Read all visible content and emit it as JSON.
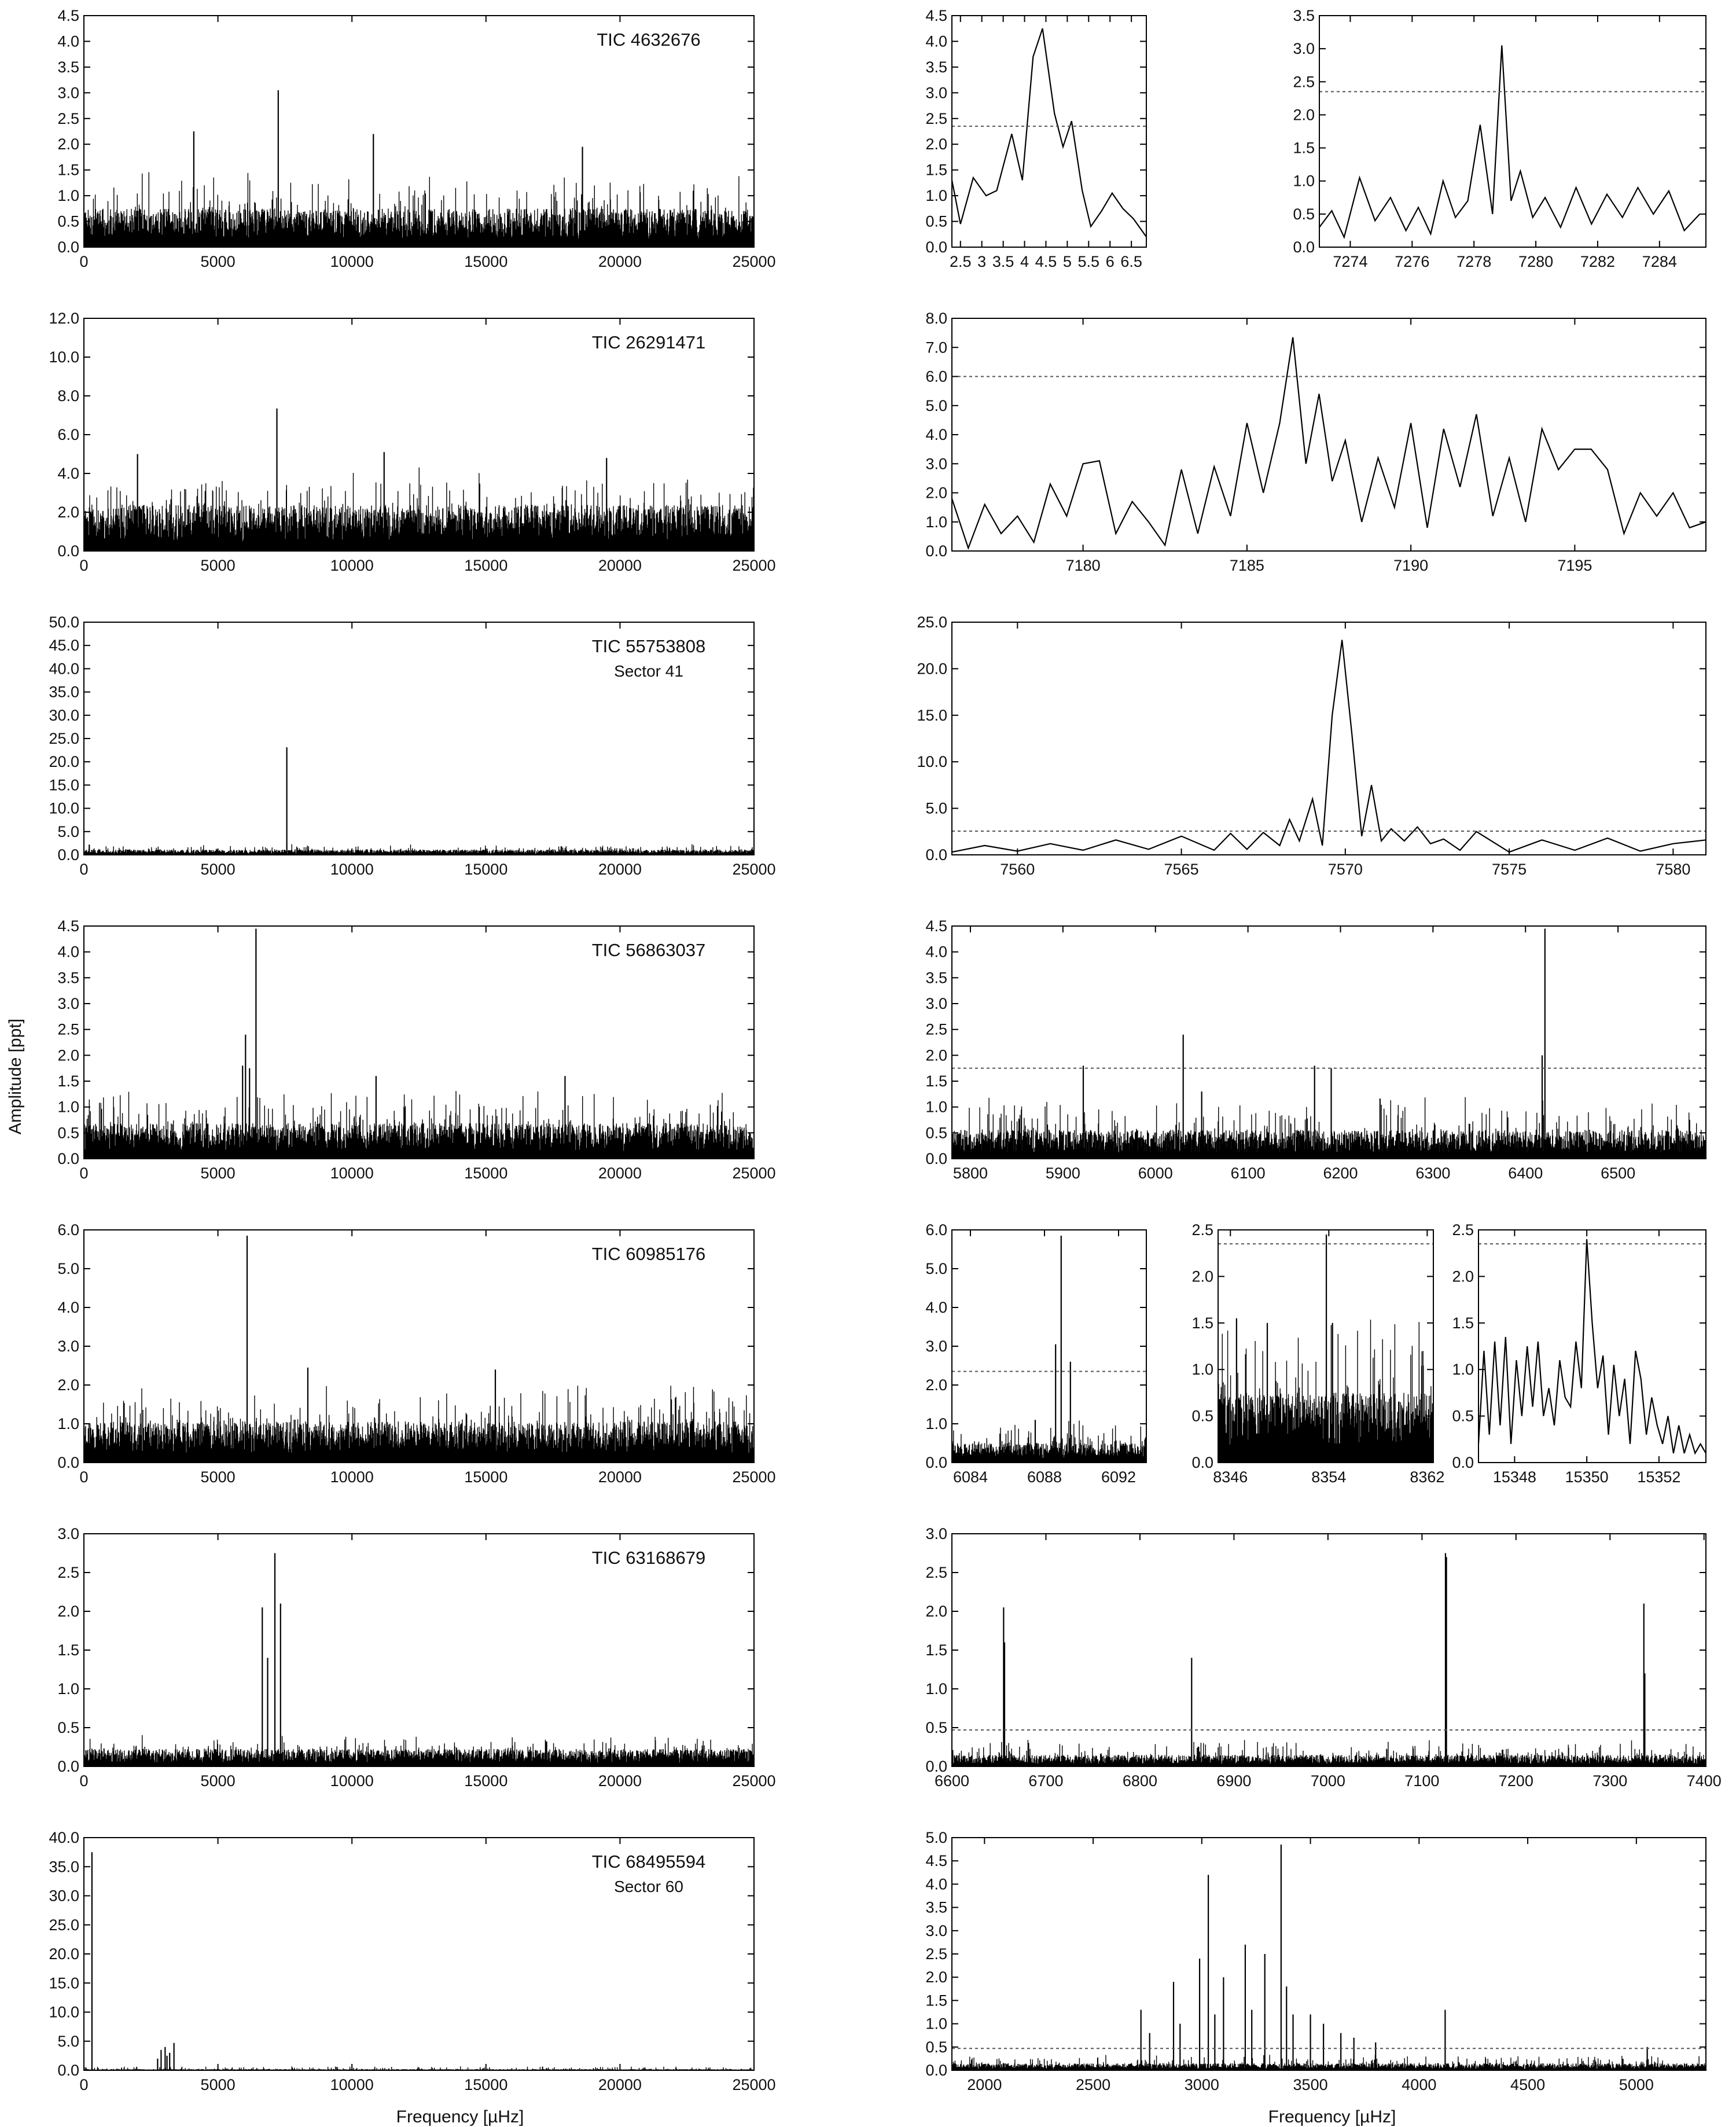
{
  "figure": {
    "ylabel": "Amplitude [ppt]",
    "xlabel_left": "Frequency [µHz]",
    "xlabel_right": "Frequency [µHz]"
  },
  "chart_data": [
    {
      "id": "p1-full",
      "type": "line",
      "title": "TIC 4632676",
      "subtitle": "",
      "xlim": [
        0,
        25000
      ],
      "ylim": [
        0,
        4.5
      ],
      "xticks": [
        0,
        5000,
        10000,
        15000,
        20000,
        25000
      ],
      "yticks": [
        0,
        0.5,
        1,
        1.5,
        2,
        2.5,
        3,
        3.5,
        4,
        4.5
      ],
      "ydec": 1,
      "noise": {
        "base": 0.6,
        "spread": 0.75
      },
      "spikes": [
        [
          4100,
          2.25
        ],
        [
          7250,
          3.05
        ],
        [
          10800,
          2.2
        ],
        [
          18600,
          1.95
        ]
      ]
    },
    {
      "id": "p1-zoomA",
      "type": "line",
      "xlim": [
        2.3,
        6.85
      ],
      "ylim": [
        0,
        4.5
      ],
      "xticks": [
        2.5,
        3,
        3.5,
        4,
        4.5,
        5,
        5.5,
        6,
        6.5
      ],
      "yticks": [
        0,
        0.5,
        1,
        1.5,
        2,
        2.5,
        3,
        3.5,
        4,
        4.5
      ],
      "ydec": 1,
      "threshold": 2.35,
      "x": [
        2.3,
        2.5,
        2.8,
        3.1,
        3.35,
        3.7,
        3.95,
        4.2,
        4.42,
        4.7,
        4.9,
        5.1,
        5.35,
        5.55,
        5.8,
        6.05,
        6.3,
        6.55,
        6.85
      ],
      "y": [
        1.3,
        0.45,
        1.35,
        1.0,
        1.1,
        2.2,
        1.3,
        3.7,
        4.25,
        2.6,
        1.95,
        2.45,
        1.1,
        0.4,
        0.7,
        1.05,
        0.75,
        0.55,
        0.2
      ]
    },
    {
      "id": "p1-zoomB",
      "type": "line",
      "xlim": [
        7273,
        7285.5
      ],
      "ylim": [
        0,
        3.5
      ],
      "xticks": [
        7274,
        7276,
        7278,
        7280,
        7282,
        7284
      ],
      "yticks": [
        0,
        0.5,
        1,
        1.5,
        2,
        2.5,
        3,
        3.5
      ],
      "ydec": 1,
      "threshold": 2.35,
      "x": [
        7273,
        7273.4,
        7273.8,
        7274.3,
        7274.8,
        7275.3,
        7275.8,
        7276.2,
        7276.6,
        7277.0,
        7277.4,
        7277.8,
        7278.2,
        7278.6,
        7278.9,
        7279.2,
        7279.5,
        7279.9,
        7280.3,
        7280.8,
        7281.3,
        7281.8,
        7282.3,
        7282.8,
        7283.3,
        7283.8,
        7284.3,
        7284.8,
        7285.3
      ],
      "y": [
        0.3,
        0.55,
        0.15,
        1.05,
        0.4,
        0.75,
        0.25,
        0.6,
        0.2,
        1.0,
        0.45,
        0.7,
        1.85,
        0.5,
        3.05,
        0.7,
        1.15,
        0.45,
        0.75,
        0.3,
        0.9,
        0.35,
        0.8,
        0.45,
        0.9,
        0.5,
        0.85,
        0.25,
        0.5
      ]
    },
    {
      "id": "p2-full",
      "type": "line",
      "title": "TIC 26291471",
      "subtitle": "",
      "xlim": [
        0,
        25000
      ],
      "ylim": [
        0,
        12
      ],
      "xticks": [
        0,
        5000,
        10000,
        15000,
        20000,
        25000
      ],
      "yticks": [
        0,
        2,
        4,
        6,
        8,
        10,
        12
      ],
      "ydec": 1,
      "noise": {
        "base": 1.9,
        "spread": 2.0
      },
      "spikes": [
        [
          7200,
          7.35
        ],
        [
          2000,
          5.0
        ],
        [
          11200,
          5.1
        ],
        [
          19500,
          4.8
        ]
      ]
    },
    {
      "id": "p2-zoom",
      "type": "line",
      "xlim": [
        7176,
        7199
      ],
      "ylim": [
        0,
        8
      ],
      "xticks": [
        7180,
        7185,
        7190,
        7195
      ],
      "yticks": [
        0,
        1,
        2,
        3,
        4,
        5,
        6,
        7,
        8
      ],
      "ydec": 1,
      "threshold": 6.0,
      "x": [
        7176,
        7176.5,
        7177,
        7177.5,
        7178,
        7178.5,
        7179,
        7179.5,
        7180,
        7180.5,
        7181,
        7181.5,
        7182,
        7182.5,
        7183,
        7183.5,
        7184,
        7184.5,
        7185,
        7185.5,
        7186,
        7186.4,
        7186.8,
        7187.2,
        7187.6,
        7188,
        7188.5,
        7189,
        7189.5,
        7190,
        7190.5,
        7191,
        7191.5,
        7192,
        7192.5,
        7193,
        7193.5,
        7194,
        7194.5,
        7195,
        7195.5,
        7196,
        7196.5,
        7197,
        7197.5,
        7198,
        7198.5,
        7199
      ],
      "y": [
        1.8,
        0.1,
        1.6,
        0.6,
        1.2,
        0.3,
        2.3,
        1.2,
        3.0,
        3.1,
        0.6,
        1.7,
        1.0,
        0.2,
        2.8,
        0.6,
        2.9,
        1.2,
        4.4,
        2.0,
        4.4,
        7.35,
        3.0,
        5.4,
        2.4,
        3.8,
        1.0,
        3.2,
        1.5,
        4.4,
        0.8,
        4.2,
        2.2,
        4.7,
        1.2,
        3.2,
        1.0,
        4.2,
        2.8,
        3.5,
        3.5,
        2.8,
        0.6,
        2.0,
        1.2,
        2.0,
        0.8,
        1.0
      ]
    },
    {
      "id": "p3-full",
      "type": "line",
      "title": "TIC 55753808",
      "subtitle": "Sector 41",
      "xlim": [
        0,
        25000
      ],
      "ylim": [
        0,
        50
      ],
      "xticks": [
        0,
        5000,
        10000,
        15000,
        20000,
        25000
      ],
      "yticks": [
        0,
        5,
        10,
        15,
        20,
        25,
        30,
        35,
        40,
        45,
        50
      ],
      "ydec": 1,
      "noise": {
        "base": 0.9,
        "spread": 1.2
      },
      "spikes": [
        [
          7570,
          23.1
        ],
        [
          200,
          2.2
        ]
      ]
    },
    {
      "id": "p3-zoom",
      "type": "line",
      "xlim": [
        7558,
        7581
      ],
      "ylim": [
        0,
        25
      ],
      "xticks": [
        7560,
        7565,
        7570,
        7575,
        7580
      ],
      "yticks": [
        0,
        5,
        10,
        15,
        20,
        25
      ],
      "ydec": 1,
      "threshold": 2.55,
      "x": [
        7558,
        7559,
        7560,
        7561,
        7562,
        7563,
        7564,
        7565,
        7566,
        7566.5,
        7567,
        7567.5,
        7568,
        7568.3,
        7568.6,
        7569,
        7569.3,
        7569.6,
        7569.9,
        7570.2,
        7570.5,
        7570.8,
        7571.1,
        7571.4,
        7571.8,
        7572.2,
        7572.6,
        7573,
        7573.5,
        7574,
        7575,
        7576,
        7577,
        7578,
        7579,
        7580,
        7581
      ],
      "y": [
        0.3,
        1.0,
        0.4,
        1.2,
        0.5,
        1.6,
        0.6,
        2.0,
        0.5,
        2.3,
        0.6,
        2.4,
        1.0,
        3.8,
        1.5,
        6.0,
        1.0,
        15.0,
        23.1,
        13.0,
        2.0,
        7.5,
        1.5,
        2.8,
        1.5,
        3.0,
        1.2,
        1.7,
        0.5,
        2.5,
        0.3,
        1.6,
        0.5,
        1.8,
        0.4,
        1.2,
        1.6
      ]
    },
    {
      "id": "p4-full",
      "type": "line",
      "title": "TIC 56863037",
      "subtitle": "",
      "xlim": [
        0,
        25000
      ],
      "ylim": [
        0,
        4.5
      ],
      "xticks": [
        0,
        5000,
        10000,
        15000,
        20000,
        25000
      ],
      "yticks": [
        0,
        0.5,
        1,
        1.5,
        2,
        2.5,
        3,
        3.5,
        4,
        4.5
      ],
      "ydec": 1,
      "noise": {
        "base": 0.55,
        "spread": 0.7
      },
      "spikes": [
        [
          5920,
          1.8
        ],
        [
          6030,
          2.4
        ],
        [
          6180,
          1.75
        ],
        [
          6420,
          4.45
        ],
        [
          10900,
          1.6
        ],
        [
          17950,
          1.6
        ]
      ]
    },
    {
      "id": "p4-zoom",
      "type": "line",
      "xlim": [
        5780,
        6595
      ],
      "ylim": [
        0,
        4.5
      ],
      "xticks": [
        5800,
        5900,
        6000,
        6100,
        6200,
        6300,
        6400,
        6500
      ],
      "yticks": [
        0,
        0.5,
        1,
        1.5,
        2,
        2.5,
        3,
        3.5,
        4,
        4.5
      ],
      "ydec": 1,
      "threshold": 1.75,
      "noise": {
        "base": 0.45,
        "spread": 0.7
      },
      "spikes": [
        [
          5922,
          1.8
        ],
        [
          6030,
          2.4
        ],
        [
          6172,
          1.8
        ],
        [
          6190,
          1.75
        ],
        [
          6421,
          4.45
        ],
        [
          6418,
          2.0
        ],
        [
          6050,
          1.3
        ]
      ]
    },
    {
      "id": "p5-full",
      "type": "line",
      "title": "TIC 60985176",
      "subtitle": "",
      "xlim": [
        0,
        25000
      ],
      "ylim": [
        0,
        6
      ],
      "xticks": [
        0,
        5000,
        10000,
        15000,
        20000,
        25000
      ],
      "yticks": [
        0,
        1,
        2,
        3,
        4,
        5,
        6
      ],
      "ydec": 1,
      "noise": {
        "base": 0.85,
        "spread": 1.0
      },
      "spikes": [
        [
          6089,
          5.85
        ],
        [
          8354,
          2.45
        ],
        [
          15350,
          2.4
        ]
      ]
    },
    {
      "id": "p5-zoomA",
      "type": "line",
      "xlim": [
        6083,
        6093.5
      ],
      "ylim": [
        0,
        6
      ],
      "xticks": [
        6084,
        6088,
        6092
      ],
      "yticks": [
        0,
        1,
        2,
        3,
        4,
        5,
        6
      ],
      "ydec": 1,
      "threshold": 2.35,
      "noise": {
        "base": 0.4,
        "spread": 0.7
      },
      "spikes": [
        [
          6088.6,
          3.05
        ],
        [
          6088.9,
          5.85
        ],
        [
          6089.4,
          2.6
        ],
        [
          6087.5,
          1.1
        ]
      ]
    },
    {
      "id": "p5-zoomB",
      "type": "line",
      "xlim": [
        8345,
        8362.5
      ],
      "ylim": [
        0,
        2.5
      ],
      "xticks": [
        8346,
        8354,
        8362
      ],
      "yticks": [
        0,
        0.5,
        1,
        1.5,
        2,
        2.5
      ],
      "ydec": 1,
      "threshold": 2.35,
      "noise": {
        "base": 0.6,
        "spread": 0.9
      },
      "spikes": [
        [
          8353.8,
          2.45
        ],
        [
          8354.3,
          1.5
        ],
        [
          8346.5,
          1.55
        ],
        [
          8349,
          1.5
        ]
      ]
    },
    {
      "id": "p5-zoomC",
      "type": "line",
      "xlim": [
        15347,
        15353.3
      ],
      "ylim": [
        0,
        2.5
      ],
      "xticks": [
        15348,
        15350,
        15352
      ],
      "yticks": [
        0,
        0.5,
        1,
        1.5,
        2,
        2.5
      ],
      "ydec": 1,
      "threshold": 2.35,
      "x": [
        15347,
        15347.15,
        15347.3,
        15347.45,
        15347.6,
        15347.75,
        15347.9,
        15348.05,
        15348.2,
        15348.35,
        15348.5,
        15348.65,
        15348.8,
        15348.95,
        15349.1,
        15349.25,
        15349.4,
        15349.55,
        15349.7,
        15349.85,
        15350.0,
        15350.15,
        15350.3,
        15350.45,
        15350.6,
        15350.75,
        15350.9,
        15351.05,
        15351.2,
        15351.35,
        15351.5,
        15351.65,
        15351.8,
        15351.95,
        15352.1,
        15352.25,
        15352.4,
        15352.55,
        15352.7,
        15352.85,
        15353.0,
        15353.15,
        15353.3
      ],
      "y": [
        0.2,
        1.2,
        0.3,
        1.3,
        0.4,
        1.35,
        0.2,
        1.1,
        0.5,
        1.25,
        0.6,
        1.3,
        0.5,
        0.8,
        0.4,
        1.1,
        0.7,
        0.6,
        1.3,
        0.8,
        2.4,
        1.5,
        0.8,
        1.15,
        0.3,
        1.05,
        0.5,
        0.9,
        0.2,
        1.2,
        0.9,
        0.3,
        0.7,
        0.4,
        0.2,
        0.5,
        0.1,
        0.4,
        0.1,
        0.3,
        0.1,
        0.2,
        0.1
      ]
    },
    {
      "id": "p6-full",
      "type": "line",
      "title": "TIC 63168679",
      "subtitle": "",
      "xlim": [
        0,
        25000
      ],
      "ylim": [
        0,
        3
      ],
      "xticks": [
        0,
        5000,
        10000,
        15000,
        20000,
        25000
      ],
      "yticks": [
        0,
        0.5,
        1,
        1.5,
        2,
        2.5,
        3
      ],
      "ydec": 1,
      "noise": {
        "base": 0.18,
        "spread": 0.2
      },
      "spikes": [
        [
          6655,
          2.05
        ],
        [
          6855,
          1.4
        ],
        [
          7125,
          2.75
        ],
        [
          7336,
          2.1
        ]
      ]
    },
    {
      "id": "p6-zoom",
      "type": "line",
      "xlim": [
        6600,
        7402
      ],
      "ylim": [
        0,
        3
      ],
      "xticks": [
        6600,
        6700,
        6800,
        6900,
        7000,
        7100,
        7200,
        7300,
        7400
      ],
      "yticks": [
        0,
        0.5,
        1,
        1.5,
        2,
        2.5,
        3
      ],
      "ydec": 1,
      "threshold": 0.47,
      "noise": {
        "base": 0.12,
        "spread": 0.2
      },
      "spikes": [
        [
          6655,
          2.05
        ],
        [
          6656,
          1.6
        ],
        [
          6855,
          1.4
        ],
        [
          7125,
          2.75
        ],
        [
          7126,
          2.7
        ],
        [
          7336,
          2.1
        ],
        [
          7337,
          1.2
        ]
      ]
    },
    {
      "id": "p7-full",
      "type": "line",
      "title": "TIC 68495594",
      "subtitle": "Sector 60",
      "xlim": [
        0,
        25000
      ],
      "ylim": [
        0,
        40
      ],
      "xticks": [
        0,
        5000,
        10000,
        15000,
        20000,
        25000
      ],
      "yticks": [
        0,
        5,
        10,
        15,
        20,
        25,
        30,
        35,
        40
      ],
      "ydec": 1,
      "noise": {
        "base": 0.15,
        "spread": 0.5
      },
      "spikes": [
        [
          300,
          37.5
        ],
        [
          2750,
          2.0
        ],
        [
          2880,
          3.5
        ],
        [
          3030,
          4.0
        ],
        [
          3100,
          2.5
        ],
        [
          3200,
          3.0
        ],
        [
          3360,
          4.7
        ]
      ]
    },
    {
      "id": "p7-zoom",
      "type": "line",
      "xlim": [
        1850,
        5320
      ],
      "ylim": [
        0,
        5
      ],
      "xticks": [
        2000,
        2500,
        3000,
        3500,
        4000,
        4500,
        5000
      ],
      "yticks": [
        0,
        0.5,
        1,
        1.5,
        2,
        2.5,
        3,
        3.5,
        4,
        4.5,
        5
      ],
      "ydec": 1,
      "threshold": 0.47,
      "noise": {
        "base": 0.12,
        "spread": 0.2
      },
      "spikes": [
        [
          2720,
          1.3
        ],
        [
          2760,
          0.8
        ],
        [
          2870,
          1.9
        ],
        [
          2900,
          1.0
        ],
        [
          2990,
          2.4
        ],
        [
          3030,
          4.2
        ],
        [
          3060,
          1.2
        ],
        [
          3100,
          2.0
        ],
        [
          3200,
          2.7
        ],
        [
          3230,
          1.3
        ],
        [
          3290,
          2.5
        ],
        [
          3365,
          4.85
        ],
        [
          3390,
          1.8
        ],
        [
          3420,
          1.2
        ],
        [
          3500,
          1.2
        ],
        [
          3560,
          1.0
        ],
        [
          3640,
          0.8
        ],
        [
          3700,
          0.7
        ],
        [
          3800,
          0.6
        ],
        [
          4120,
          1.3
        ],
        [
          5050,
          0.5
        ]
      ]
    }
  ]
}
